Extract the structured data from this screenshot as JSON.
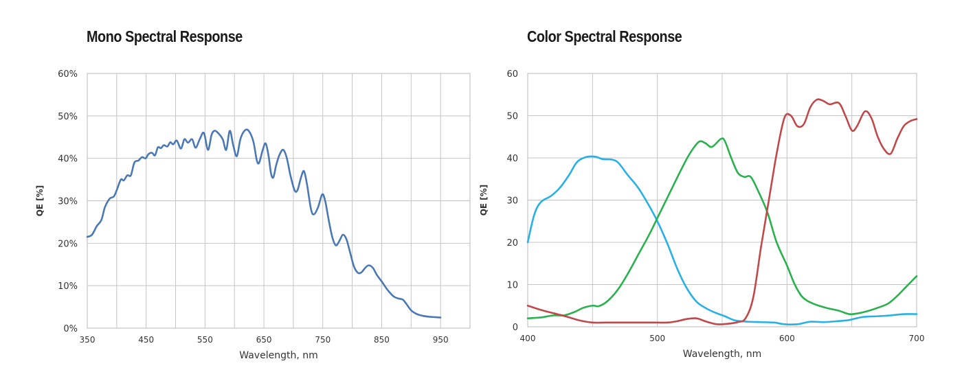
{
  "chart_data": [
    {
      "type": "line",
      "title": "Mono Spectral Response",
      "xlabel": "Wavelength, nm",
      "ylabel": "QE [%]",
      "xlim": [
        350,
        1000
      ],
      "ylim": [
        0,
        60
      ],
      "x_ticks": [
        350,
        450,
        550,
        650,
        750,
        850,
        950
      ],
      "x_tick_labels": [
        "350",
        "450",
        "550",
        "650",
        "750",
        "850",
        "950"
      ],
      "y_ticks": [
        0,
        10,
        20,
        30,
        40,
        50,
        60
      ],
      "y_tick_labels": [
        "0%",
        "10%",
        "20%",
        "30%",
        "40%",
        "50%",
        "60%"
      ],
      "grid": true,
      "series": [
        {
          "name": "Mono",
          "color": "#4a78b5",
          "points": [
            [
              350,
              21.5
            ],
            [
              358,
              22
            ],
            [
              366,
              24
            ],
            [
              374,
              25.5
            ],
            [
              380,
              28.5
            ],
            [
              388,
              30.5
            ],
            [
              395,
              31
            ],
            [
              400,
              32.5
            ],
            [
              407,
              35
            ],
            [
              412,
              34.8
            ],
            [
              418,
              36
            ],
            [
              424,
              36
            ],
            [
              430,
              39
            ],
            [
              437,
              39.5
            ],
            [
              443,
              40.3
            ],
            [
              449,
              40
            ],
            [
              454,
              41
            ],
            [
              460,
              41.3
            ],
            [
              465,
              40.7
            ],
            [
              470,
              42.6
            ],
            [
              475,
              42.4
            ],
            [
              480,
              43.1
            ],
            [
              486,
              42.8
            ],
            [
              491,
              43.8
            ],
            [
              496,
              43.3
            ],
            [
              502,
              44.2
            ],
            [
              509,
              42.3
            ],
            [
              515,
              44.5
            ],
            [
              521,
              43.7
            ],
            [
              528,
              44.5
            ],
            [
              534,
              42.5
            ],
            [
              541,
              44.5
            ],
            [
              548,
              46
            ],
            [
              555,
              42
            ],
            [
              561,
              45.5
            ],
            [
              566,
              46.5
            ],
            [
              572,
              46
            ],
            [
              580,
              44.5
            ],
            [
              586,
              42
            ],
            [
              592,
              46.5
            ],
            [
              598,
              43
            ],
            [
              604,
              40.5
            ],
            [
              610,
              44.5
            ],
            [
              617,
              46.5
            ],
            [
              624,
              46.5
            ],
            [
              632,
              44
            ],
            [
              638,
              39.5
            ],
            [
              642,
              39
            ],
            [
              648,
              42
            ],
            [
              653,
              43.5
            ],
            [
              658,
              40.5
            ],
            [
              662,
              36.5
            ],
            [
              666,
              35.5
            ],
            [
              671,
              38.5
            ],
            [
              677,
              41
            ],
            [
              683,
              42
            ],
            [
              689,
              40
            ],
            [
              695,
              36
            ],
            [
              702,
              32.5
            ],
            [
              707,
              32.5
            ],
            [
              713,
              35.5
            ],
            [
              718,
              37
            ],
            [
              723,
              34
            ],
            [
              730,
              28
            ],
            [
              735,
              26.8
            ],
            [
              742,
              28.5
            ],
            [
              749,
              31.5
            ],
            [
              754,
              30
            ],
            [
              760,
              25.5
            ],
            [
              766,
              21.5
            ],
            [
              772,
              19.5
            ],
            [
              778,
              20.5
            ],
            [
              784,
              22
            ],
            [
              790,
              21
            ],
            [
              797,
              17.5
            ],
            [
              803,
              14.5
            ],
            [
              810,
              13
            ],
            [
              816,
              13.2
            ],
            [
              822,
              14.2
            ],
            [
              828,
              14.8
            ],
            [
              835,
              14.2
            ],
            [
              842,
              12.5
            ],
            [
              850,
              11
            ],
            [
              860,
              9
            ],
            [
              870,
              7.5
            ],
            [
              878,
              7
            ],
            [
              886,
              6.7
            ],
            [
              893,
              5.5
            ],
            [
              900,
              4.2
            ],
            [
              910,
              3.3
            ],
            [
              920,
              2.9
            ],
            [
              930,
              2.7
            ],
            [
              940,
              2.6
            ],
            [
              950,
              2.5
            ]
          ]
        }
      ]
    },
    {
      "type": "line",
      "title": "Color Spectral Response",
      "xlabel": "Wavelength, nm",
      "ylabel": "QE [%]",
      "xlim": [
        400,
        700
      ],
      "ylim": [
        0,
        60
      ],
      "x_ticks": [
        400,
        500,
        600,
        700
      ],
      "x_tick_labels": [
        "400",
        "500",
        "600",
        "700"
      ],
      "y_ticks": [
        0,
        10,
        20,
        30,
        40,
        50,
        60
      ],
      "y_tick_labels": [
        "0",
        "10",
        "20",
        "30",
        "40",
        "50",
        "60"
      ],
      "grid": true,
      "series": [
        {
          "name": "Blue",
          "color": "#27b0e6",
          "points": [
            [
              400,
              20
            ],
            [
              405,
              26.5
            ],
            [
              410,
              29.5
            ],
            [
              418,
              31
            ],
            [
              425,
              33
            ],
            [
              432,
              36
            ],
            [
              438,
              39
            ],
            [
              445,
              40.2
            ],
            [
              452,
              40.3
            ],
            [
              458,
              39.7
            ],
            [
              465,
              39.6
            ],
            [
              470,
              38.8
            ],
            [
              477,
              36
            ],
            [
              485,
              33
            ],
            [
              493,
              29
            ],
            [
              500,
              25
            ],
            [
              508,
              19.5
            ],
            [
              515,
              14
            ],
            [
              522,
              9.5
            ],
            [
              530,
              6
            ],
            [
              538,
              4.3
            ],
            [
              545,
              3.3
            ],
            [
              552,
              2.5
            ],
            [
              560,
              1.5
            ],
            [
              570,
              1.2
            ],
            [
              580,
              1.1
            ],
            [
              590,
              1
            ],
            [
              598,
              0.6
            ],
            [
              608,
              0.6
            ],
            [
              618,
              1.2
            ],
            [
              628,
              1.1
            ],
            [
              638,
              1.3
            ],
            [
              648,
              1.6
            ],
            [
              658,
              2.3
            ],
            [
              670,
              2.5
            ],
            [
              680,
              2.7
            ],
            [
              690,
              3
            ],
            [
              700,
              3
            ]
          ]
        },
        {
          "name": "Green",
          "color": "#28b14c",
          "points": [
            [
              400,
              2
            ],
            [
              410,
              2.2
            ],
            [
              420,
              2.7
            ],
            [
              428,
              2.7
            ],
            [
              436,
              3.5
            ],
            [
              443,
              4.5
            ],
            [
              450,
              5
            ],
            [
              455,
              4.9
            ],
            [
              462,
              6.2
            ],
            [
              470,
              9
            ],
            [
              478,
              13
            ],
            [
              486,
              17.5
            ],
            [
              494,
              22
            ],
            [
              502,
              27
            ],
            [
              510,
              32
            ],
            [
              518,
              37
            ],
            [
              525,
              41
            ],
            [
              532,
              43.8
            ],
            [
              537,
              43.5
            ],
            [
              542,
              42.6
            ],
            [
              549,
              44.5
            ],
            [
              552,
              44
            ],
            [
              557,
              40
            ],
            [
              562,
              36.5
            ],
            [
              567,
              35.5
            ],
            [
              572,
              35.5
            ],
            [
              578,
              32
            ],
            [
              585,
              27
            ],
            [
              592,
              20
            ],
            [
              600,
              14.5
            ],
            [
              606,
              10
            ],
            [
              612,
              7
            ],
            [
              620,
              5.5
            ],
            [
              630,
              4.5
            ],
            [
              640,
              3.8
            ],
            [
              648,
              3
            ],
            [
              655,
              3.2
            ],
            [
              662,
              3.7
            ],
            [
              670,
              4.5
            ],
            [
              678,
              5.5
            ],
            [
              685,
              7.3
            ],
            [
              692,
              9.5
            ],
            [
              700,
              12
            ]
          ]
        },
        {
          "name": "Red",
          "color": "#c1484a",
          "points": [
            [
              400,
              5
            ],
            [
              410,
              4
            ],
            [
              420,
              3.2
            ],
            [
              430,
              2.4
            ],
            [
              440,
              1.5
            ],
            [
              450,
              1
            ],
            [
              460,
              1
            ],
            [
              470,
              1
            ],
            [
              480,
              1
            ],
            [
              490,
              1
            ],
            [
              500,
              1
            ],
            [
              508,
              1
            ],
            [
              515,
              1.3
            ],
            [
              522,
              1.8
            ],
            [
              530,
              2
            ],
            [
              538,
              1.2
            ],
            [
              546,
              0.6
            ],
            [
              554,
              0.7
            ],
            [
              562,
              1.1
            ],
            [
              568,
              2
            ],
            [
              574,
              7
            ],
            [
              580,
              19
            ],
            [
              586,
              30
            ],
            [
              592,
              41
            ],
            [
              598,
              49.5
            ],
            [
              603,
              50
            ],
            [
              608,
              47.5
            ],
            [
              613,
              48
            ],
            [
              618,
              52
            ],
            [
              623,
              53.8
            ],
            [
              628,
              53.5
            ],
            [
              633,
              52.7
            ],
            [
              640,
              53
            ],
            [
              645,
              50
            ],
            [
              650,
              46.5
            ],
            [
              654,
              47.5
            ],
            [
              660,
              51
            ],
            [
              665,
              49.5
            ],
            [
              670,
              45
            ],
            [
              675,
              42
            ],
            [
              680,
              41
            ],
            [
              685,
              44.5
            ],
            [
              690,
              47.5
            ],
            [
              695,
              48.7
            ],
            [
              700,
              49.2
            ]
          ]
        }
      ]
    }
  ]
}
